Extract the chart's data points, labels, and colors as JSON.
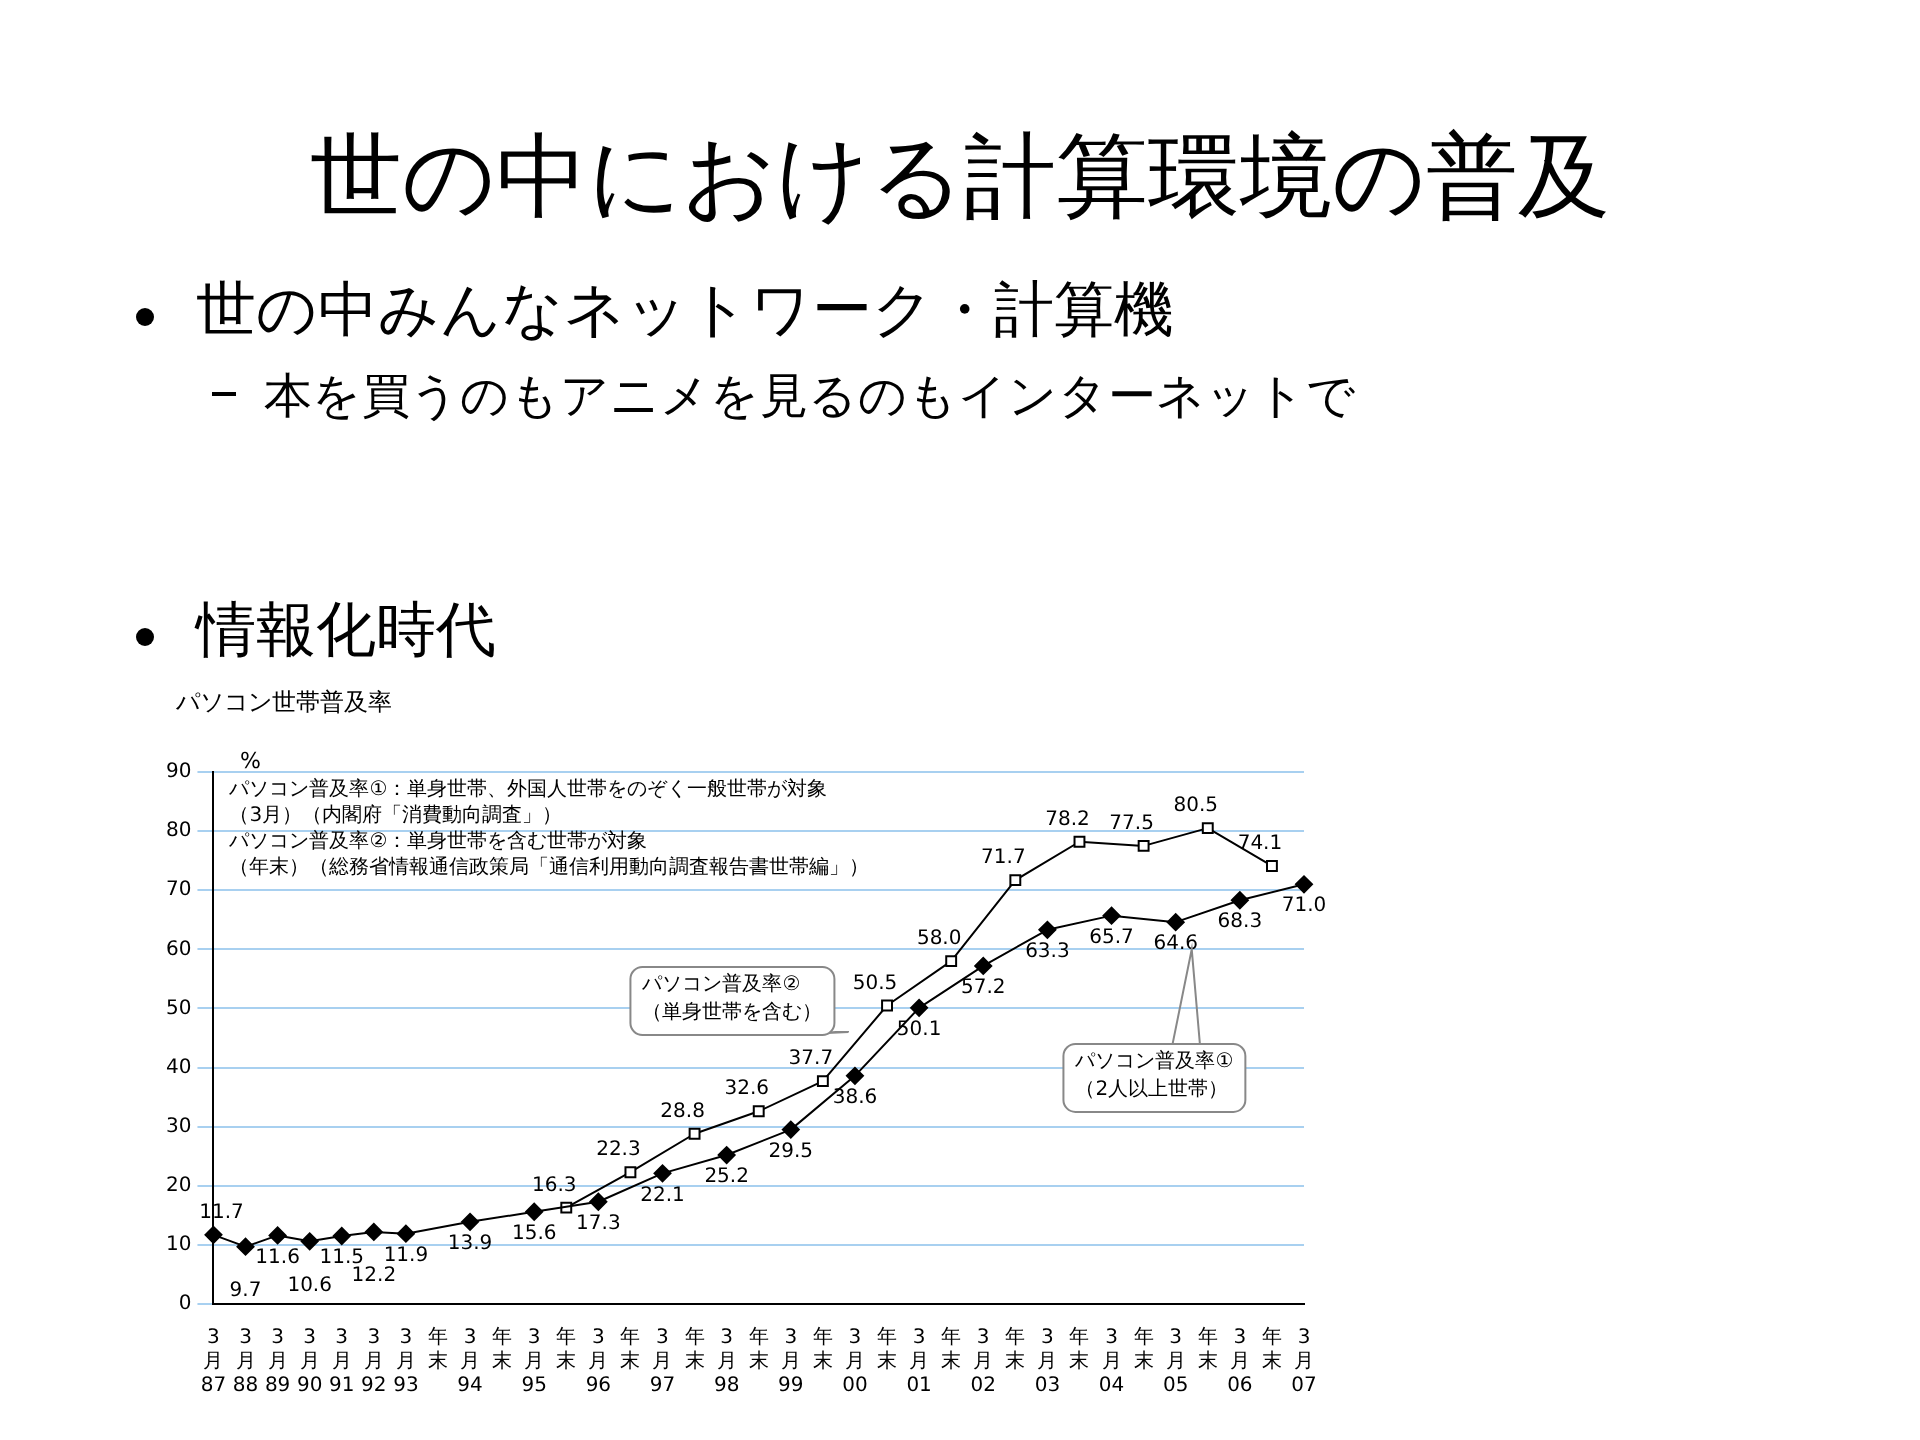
{
  "chart_data": {
    "type": "line",
    "title": "世の中における計算環境の普及",
    "subtitle": "パソコン世帯普及率",
    "ylabel": "%",
    "categories": [
      "3月 87",
      "3月 88",
      "3月 89",
      "3月 90",
      "3月 91",
      "3月 92",
      "3月 93",
      "年末",
      "3月 94",
      "年末",
      "3月 95",
      "年末",
      "3月 96",
      "年末",
      "3月 97",
      "年末",
      "3月 98",
      "年末",
      "3月 99",
      "年末",
      "3月 00",
      "年末",
      "3月 01",
      "年末",
      "3月 02",
      "年末",
      "3月 03",
      "年末",
      "3月 04",
      "年末",
      "3月 05",
      "年末",
      "3月 06",
      "年末",
      "3月 07"
    ],
    "series": [
      {
        "color": "#000000",
        "marker": "diamond",
        "values": [
          11.7,
          9.7,
          11.6,
          10.6,
          11.5,
          12.2,
          11.9,
          null,
          13.9,
          null,
          15.6,
          null,
          17.3,
          null,
          22.1,
          null,
          25.2,
          null,
          29.5,
          null,
          38.6,
          null,
          50.1,
          null,
          57.2,
          null,
          63.3,
          null,
          65.7,
          null,
          64.6,
          null,
          68.3,
          null,
          71.0
        ],
        "value_labels": [
          "11.7",
          "9.7",
          "11.6",
          "10.6",
          "11.5",
          "12.2",
          "11.9",
          null,
          "13.9",
          null,
          "15.6",
          null,
          "17.3",
          null,
          "22.1",
          null,
          "25.2",
          null,
          "29.5",
          null,
          "38.6",
          null,
          "50.1",
          null,
          "57.2",
          null,
          "63.3",
          null,
          "65.7",
          null,
          "64.6",
          null,
          "68.3",
          null,
          "71.0"
        ]
      },
      {
        "color": "#000000",
        "marker": "square",
        "values": [
          null,
          null,
          null,
          null,
          null,
          null,
          null,
          null,
          null,
          null,
          null,
          16.3,
          null,
          22.3,
          null,
          28.8,
          null,
          32.6,
          null,
          37.7,
          null,
          50.5,
          null,
          58.0,
          null,
          71.7,
          null,
          78.2,
          null,
          77.5,
          null,
          80.5,
          null,
          74.1,
          null
        ],
        "value_labels": [
          null,
          null,
          null,
          null,
          null,
          null,
          null,
          null,
          null,
          null,
          null,
          "16.3",
          null,
          "22.3",
          null,
          "28.8",
          null,
          "32.6",
          null,
          "37.7",
          null,
          "50.5",
          null,
          "58.0",
          null,
          "71.7",
          null,
          "78.2",
          null,
          "77.5",
          null,
          "80.5",
          null,
          "74.1",
          null
        ]
      }
    ],
    "ylim": [
      0,
      90
    ],
    "yticks": [
      0,
      10,
      20,
      30,
      40,
      50,
      60,
      70,
      80,
      90
    ],
    "grid": "y",
    "annotations": [
      "世の中みんなネットワーク・計算機",
      "本を買うのもアニメを見るのもインターネットで",
      "情報化時代",
      "パソコン普及率①：単身世帯、外国人世帯をのぞく一般世帯が対象",
      "（3月）（内閣府「消費動向調査」）",
      "パソコン普及率②：単身世帯を含む世帯が対象",
      "（年末）（総務省情報通信政策局「通信利用動向調査報告書世帯編」）",
      "パソコン普及率②（単身世帯を含む）",
      "パソコン普及率①（2人以上世帯）"
    ]
  }
}
